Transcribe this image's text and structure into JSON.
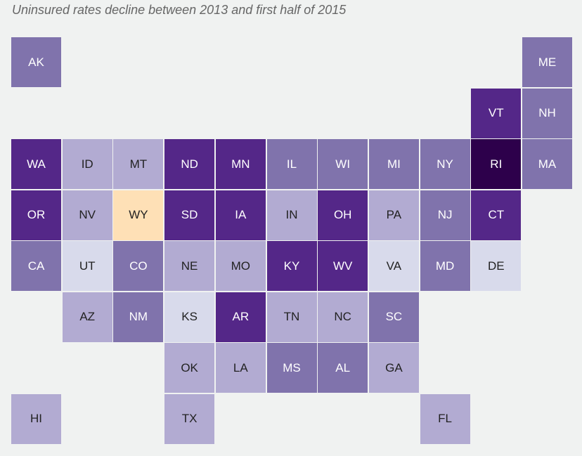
{
  "chart_data": {
    "type": "heatmap",
    "title": "Uninsured rates decline between 2013 and first half of 2015",
    "colors": [
      "#fee0b6",
      "#d8daeb",
      "#b2abd2",
      "#8073ac",
      "#542788",
      "#2d004b"
    ],
    "states": [
      {
        "state": "AK",
        "level": 3
      },
      {
        "state": "ME",
        "level": 3
      },
      {
        "state": "VT",
        "level": 4
      },
      {
        "state": "NH",
        "level": 3
      },
      {
        "state": "WA",
        "level": 4
      },
      {
        "state": "ID",
        "level": 2
      },
      {
        "state": "MT",
        "level": 2
      },
      {
        "state": "ND",
        "level": 4
      },
      {
        "state": "MN",
        "level": 4
      },
      {
        "state": "IL",
        "level": 3
      },
      {
        "state": "WI",
        "level": 3
      },
      {
        "state": "MI",
        "level": 3
      },
      {
        "state": "NY",
        "level": 3
      },
      {
        "state": "RI",
        "level": 5
      },
      {
        "state": "MA",
        "level": 3
      },
      {
        "state": "OR",
        "level": 4
      },
      {
        "state": "NV",
        "level": 2
      },
      {
        "state": "WY",
        "level": 0
      },
      {
        "state": "SD",
        "level": 4
      },
      {
        "state": "IA",
        "level": 4
      },
      {
        "state": "IN",
        "level": 2
      },
      {
        "state": "OH",
        "level": 4
      },
      {
        "state": "PA",
        "level": 2
      },
      {
        "state": "NJ",
        "level": 3
      },
      {
        "state": "CT",
        "level": 4
      },
      {
        "state": "CA",
        "level": 3
      },
      {
        "state": "UT",
        "level": 1
      },
      {
        "state": "CO",
        "level": 3
      },
      {
        "state": "NE",
        "level": 2
      },
      {
        "state": "MO",
        "level": 2
      },
      {
        "state": "KY",
        "level": 4
      },
      {
        "state": "WV",
        "level": 4
      },
      {
        "state": "VA",
        "level": 1
      },
      {
        "state": "MD",
        "level": 3
      },
      {
        "state": "DE",
        "level": 1
      },
      {
        "state": "AZ",
        "level": 2
      },
      {
        "state": "NM",
        "level": 3
      },
      {
        "state": "KS",
        "level": 1
      },
      {
        "state": "AR",
        "level": 4
      },
      {
        "state": "TN",
        "level": 2
      },
      {
        "state": "NC",
        "level": 2
      },
      {
        "state": "SC",
        "level": 3
      },
      {
        "state": "OK",
        "level": 2
      },
      {
        "state": "LA",
        "level": 2
      },
      {
        "state": "MS",
        "level": 3
      },
      {
        "state": "AL",
        "level": 3
      },
      {
        "state": "GA",
        "level": 2
      },
      {
        "state": "HI",
        "level": 2
      },
      {
        "state": "TX",
        "level": 2
      },
      {
        "state": "FL",
        "level": 2
      }
    ]
  }
}
